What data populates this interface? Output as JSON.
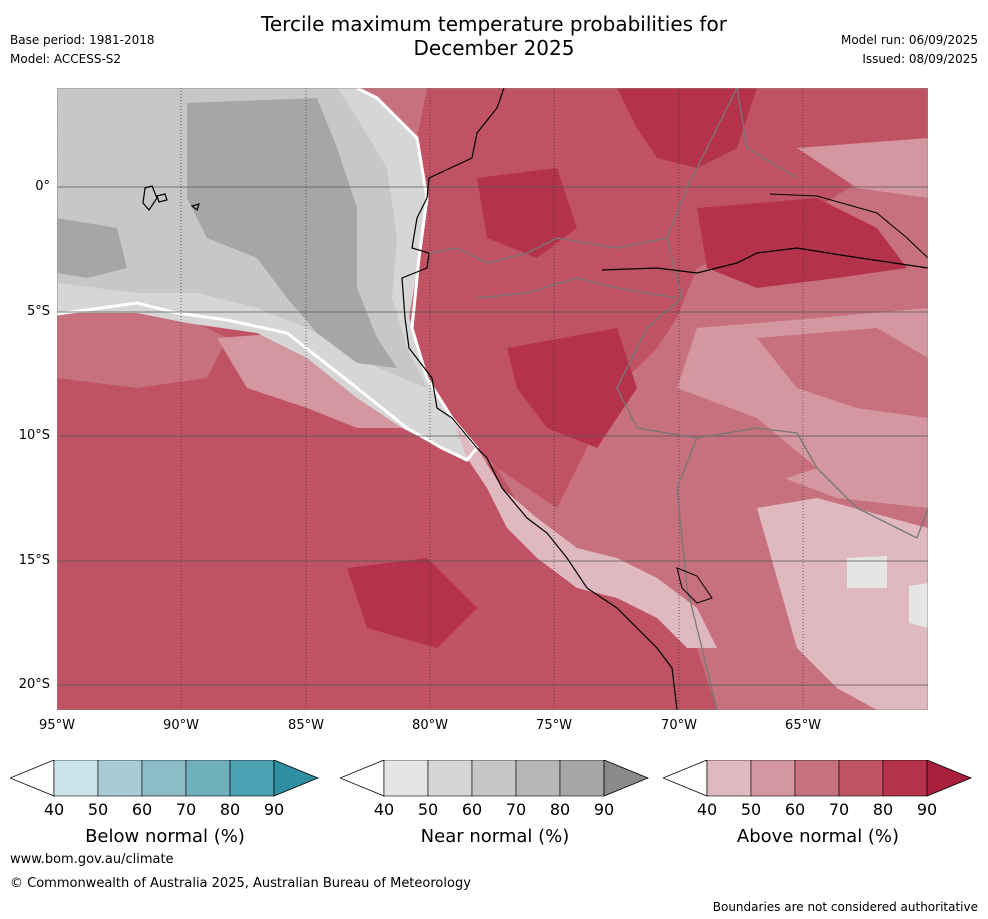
{
  "header": {
    "title_line1": "Tercile maximum temperature probabilities for",
    "title_line2": "December 2025",
    "base_period": "Base period: 1981-2018",
    "model": "Model: ACCESS-S2",
    "model_run": "Model run: 06/09/2025",
    "issued": "Issued: 08/09/2025"
  },
  "map": {
    "lat_labels": [
      "0°",
      "5°S",
      "10°S",
      "15°S",
      "20°S"
    ],
    "lon_labels": [
      "95°W",
      "90°W",
      "85°W",
      "80°W",
      "75°W",
      "70°W",
      "65°W"
    ],
    "extent": {
      "lon": [
        -95,
        -60
      ],
      "lat": [
        -21,
        4
      ]
    }
  },
  "colorbars": [
    {
      "label": "Below normal (%)",
      "ticks": [
        "40",
        "50",
        "60",
        "70",
        "80",
        "90"
      ],
      "colors": [
        "#c9e3e8",
        "#a8ccd3",
        "#8cbcc7",
        "#6fb0bc",
        "#4aa1b1",
        "#2f8fa2"
      ]
    },
    {
      "label": "Near normal (%)",
      "ticks": [
        "40",
        "50",
        "60",
        "70",
        "80",
        "90"
      ],
      "colors": [
        "#e5e5e5",
        "#d6d6d6",
        "#c7c7c7",
        "#b6b6b6",
        "#a6a6a6",
        "#8a8a8a"
      ]
    },
    {
      "label": "Above normal (%)",
      "ticks": [
        "40",
        "50",
        "60",
        "70",
        "80",
        "90"
      ],
      "colors": [
        "#e0b8bf",
        "#d4969f",
        "#c8717e",
        "#bf5363",
        "#b5334a",
        "#a8203b"
      ]
    }
  ],
  "footer": {
    "website": "www.bom.gov.au/climate",
    "copyright": "© Commonwealth of Australia 2025, Australian Bureau of Meteorology",
    "disclaimer": "Boundaries are not considered authoritative"
  }
}
